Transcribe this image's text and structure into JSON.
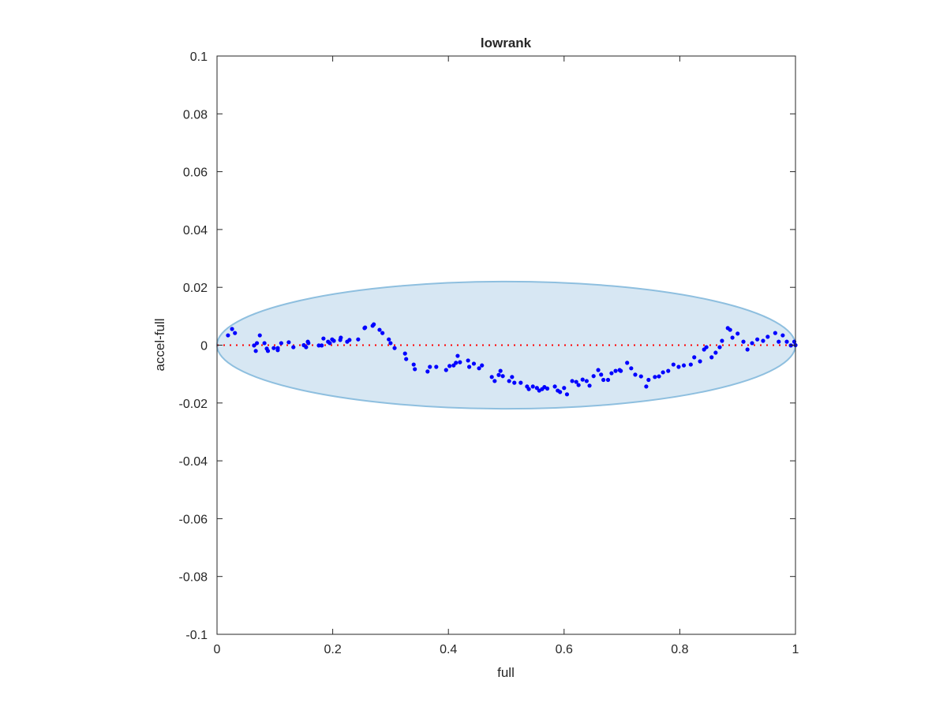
{
  "chart_data": {
    "type": "scatter",
    "title": "lowrank",
    "xlabel": "full",
    "ylabel": "accel-full",
    "xlim": [
      0,
      1
    ],
    "ylim": [
      -0.1,
      0.1
    ],
    "xticks": [
      0,
      0.2,
      0.4,
      0.6,
      0.8,
      1
    ],
    "xtick_labels": [
      "0",
      "0.2",
      "0.4",
      "0.6",
      "0.8",
      "1"
    ],
    "yticks": [
      0.1,
      0.08,
      0.06,
      0.04,
      0.02,
      0,
      -0.02,
      -0.04,
      -0.06,
      -0.08,
      -0.1
    ],
    "ytick_labels": [
      "0.1",
      "0.08",
      "0.06",
      "0.04",
      "0.02",
      "0",
      "-0.02",
      "-0.04",
      "-0.06",
      "-0.08",
      "-0.1"
    ],
    "grid": false,
    "colors": {
      "points": "#0000ff",
      "reference_line": "#ff0000",
      "ellipse_fill": "#d7e7f3",
      "ellipse_edge": "#8ebfdf"
    },
    "reference_line": {
      "y": 0,
      "style": "dotted"
    },
    "ellipse": {
      "center": [
        0.5,
        0
      ],
      "x_radius": 0.5,
      "y_radius": 0.022
    },
    "points": [
      [
        0.019,
        0.0034
      ],
      [
        0.026,
        0.0056
      ],
      [
        0.031,
        0.0042
      ],
      [
        0.064,
        -0.0001
      ],
      [
        0.067,
        -0.002
      ],
      [
        0.069,
        0.0007
      ],
      [
        0.074,
        0.0034
      ],
      [
        0.082,
        0.0007
      ],
      [
        0.086,
        -0.0012
      ],
      [
        0.088,
        -0.002
      ],
      [
        0.098,
        -0.001
      ],
      [
        0.105,
        -0.001
      ],
      [
        0.105,
        -0.0017
      ],
      [
        0.111,
        0.0007
      ],
      [
        0.124,
        0.001
      ],
      [
        0.132,
        -0.0007
      ],
      [
        0.15,
        0
      ],
      [
        0.154,
        -0.0007
      ],
      [
        0.157,
        0.0012
      ],
      [
        0.158,
        0.0007
      ],
      [
        0.176,
        -0.0001
      ],
      [
        0.181,
        -0.0001
      ],
      [
        0.184,
        0.0023
      ],
      [
        0.192,
        0.0012
      ],
      [
        0.195,
        0.0007
      ],
      [
        0.199,
        0.002
      ],
      [
        0.202,
        0.0015
      ],
      [
        0.213,
        0.0018
      ],
      [
        0.214,
        0.0026
      ],
      [
        0.225,
        0.0012
      ],
      [
        0.229,
        0.0018
      ],
      [
        0.244,
        0.002
      ],
      [
        0.255,
        0.0059
      ],
      [
        0.256,
        0.0061
      ],
      [
        0.269,
        0.0067
      ],
      [
        0.271,
        0.0072
      ],
      [
        0.281,
        0.0053
      ],
      [
        0.286,
        0.0042
      ],
      [
        0.297,
        0.002
      ],
      [
        0.3,
        0.0007
      ],
      [
        0.307,
        -0.001
      ],
      [
        0.325,
        -0.0029
      ],
      [
        0.327,
        -0.0048
      ],
      [
        0.34,
        -0.0067
      ],
      [
        0.342,
        -0.0083
      ],
      [
        0.364,
        -0.0091
      ],
      [
        0.368,
        -0.0075
      ],
      [
        0.379,
        -0.0075
      ],
      [
        0.396,
        -0.0086
      ],
      [
        0.402,
        -0.0072
      ],
      [
        0.409,
        -0.007
      ],
      [
        0.413,
        -0.0061
      ],
      [
        0.416,
        -0.0037
      ],
      [
        0.42,
        -0.0059
      ],
      [
        0.434,
        -0.0053
      ],
      [
        0.436,
        -0.0075
      ],
      [
        0.444,
        -0.0064
      ],
      [
        0.453,
        -0.008
      ],
      [
        0.458,
        -0.007
      ],
      [
        0.475,
        -0.011
      ],
      [
        0.48,
        -0.0124
      ],
      [
        0.487,
        -0.0103
      ],
      [
        0.49,
        -0.0089
      ],
      [
        0.494,
        -0.0107
      ],
      [
        0.505,
        -0.0124
      ],
      [
        0.51,
        -0.011
      ],
      [
        0.514,
        -0.013
      ],
      [
        0.525,
        -0.013
      ],
      [
        0.536,
        -0.0143
      ],
      [
        0.539,
        -0.0152
      ],
      [
        0.546,
        -0.0143
      ],
      [
        0.553,
        -0.0148
      ],
      [
        0.557,
        -0.0157
      ],
      [
        0.562,
        -0.0152
      ],
      [
        0.566,
        -0.0145
      ],
      [
        0.571,
        -0.015
      ],
      [
        0.584,
        -0.0143
      ],
      [
        0.589,
        -0.0157
      ],
      [
        0.593,
        -0.0162
      ],
      [
        0.6,
        -0.0148
      ],
      [
        0.605,
        -0.017
      ],
      [
        0.614,
        -0.0124
      ],
      [
        0.621,
        -0.0127
      ],
      [
        0.625,
        -0.0138
      ],
      [
        0.632,
        -0.0119
      ],
      [
        0.639,
        -0.0124
      ],
      [
        0.644,
        -0.014
      ],
      [
        0.651,
        -0.0107
      ],
      [
        0.659,
        -0.0086
      ],
      [
        0.664,
        -0.0102
      ],
      [
        0.668,
        -0.012
      ],
      [
        0.676,
        -0.012
      ],
      [
        0.682,
        -0.0097
      ],
      [
        0.689,
        -0.0089
      ],
      [
        0.696,
        -0.0086
      ],
      [
        0.698,
        -0.0089
      ],
      [
        0.709,
        -0.0061
      ],
      [
        0.716,
        -0.008
      ],
      [
        0.723,
        -0.0102
      ],
      [
        0.733,
        -0.0108
      ],
      [
        0.742,
        -0.0143
      ],
      [
        0.746,
        -0.012
      ],
      [
        0.757,
        -0.011
      ],
      [
        0.764,
        -0.0108
      ],
      [
        0.771,
        -0.0094
      ],
      [
        0.78,
        -0.0089
      ],
      [
        0.789,
        -0.0067
      ],
      [
        0.798,
        -0.0075
      ],
      [
        0.807,
        -0.007
      ],
      [
        0.819,
        -0.0067
      ],
      [
        0.825,
        -0.0042
      ],
      [
        0.835,
        -0.0056
      ],
      [
        0.842,
        -0.0015
      ],
      [
        0.846,
        -0.0007
      ],
      [
        0.855,
        -0.0042
      ],
      [
        0.862,
        -0.0026
      ],
      [
        0.869,
        -0.0007
      ],
      [
        0.873,
        0.0015
      ],
      [
        0.883,
        0.0059
      ],
      [
        0.887,
        0.0053
      ],
      [
        0.891,
        0.0026
      ],
      [
        0.9,
        0.004
      ],
      [
        0.91,
        0.0012
      ],
      [
        0.917,
        -0.0015
      ],
      [
        0.925,
        0.0007
      ],
      [
        0.934,
        0.002
      ],
      [
        0.944,
        0.0015
      ],
      [
        0.952,
        0.0029
      ],
      [
        0.965,
        0.0042
      ],
      [
        0.971,
        0.0012
      ],
      [
        0.978,
        0.0034
      ],
      [
        0.985,
        0.0012
      ],
      [
        0.992,
        -0.0001
      ],
      [
        0.998,
        0.0012
      ],
      [
        1.0,
        0
      ]
    ]
  }
}
